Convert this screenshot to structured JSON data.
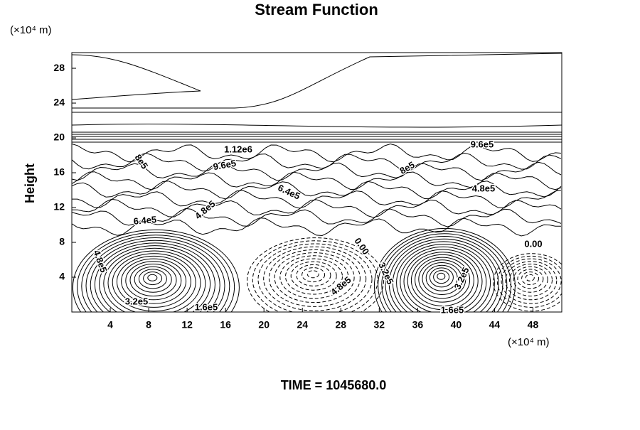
{
  "chart_data": {
    "type": "contour",
    "title": "Stream Function",
    "ylabel": "Height",
    "x_unit_label": "(×10⁴ m)",
    "y_unit_label": "(×10⁴ m)",
    "xlim": [
      0,
      51
    ],
    "xticks": [
      4,
      8,
      12,
      16,
      20,
      24,
      28,
      32,
      36,
      40,
      44,
      48
    ],
    "ylim": [
      0,
      29.8
    ],
    "yticks": [
      4,
      8,
      12,
      16,
      20,
      24,
      28
    ],
    "contour_labels": [
      "1.12e6",
      "9.6e5",
      "9.6e5",
      "8e5",
      "8e5",
      "6.4e5",
      "6.4e5",
      "4.8e5",
      "4.8e5",
      "4.8e5",
      "0.00",
      "0.00",
      "3.2e5",
      "1.6e5",
      "1.6e5",
      "3.2e5",
      "4.8e5",
      "3.2e5"
    ],
    "footer": "TIME = 1045680.0"
  }
}
